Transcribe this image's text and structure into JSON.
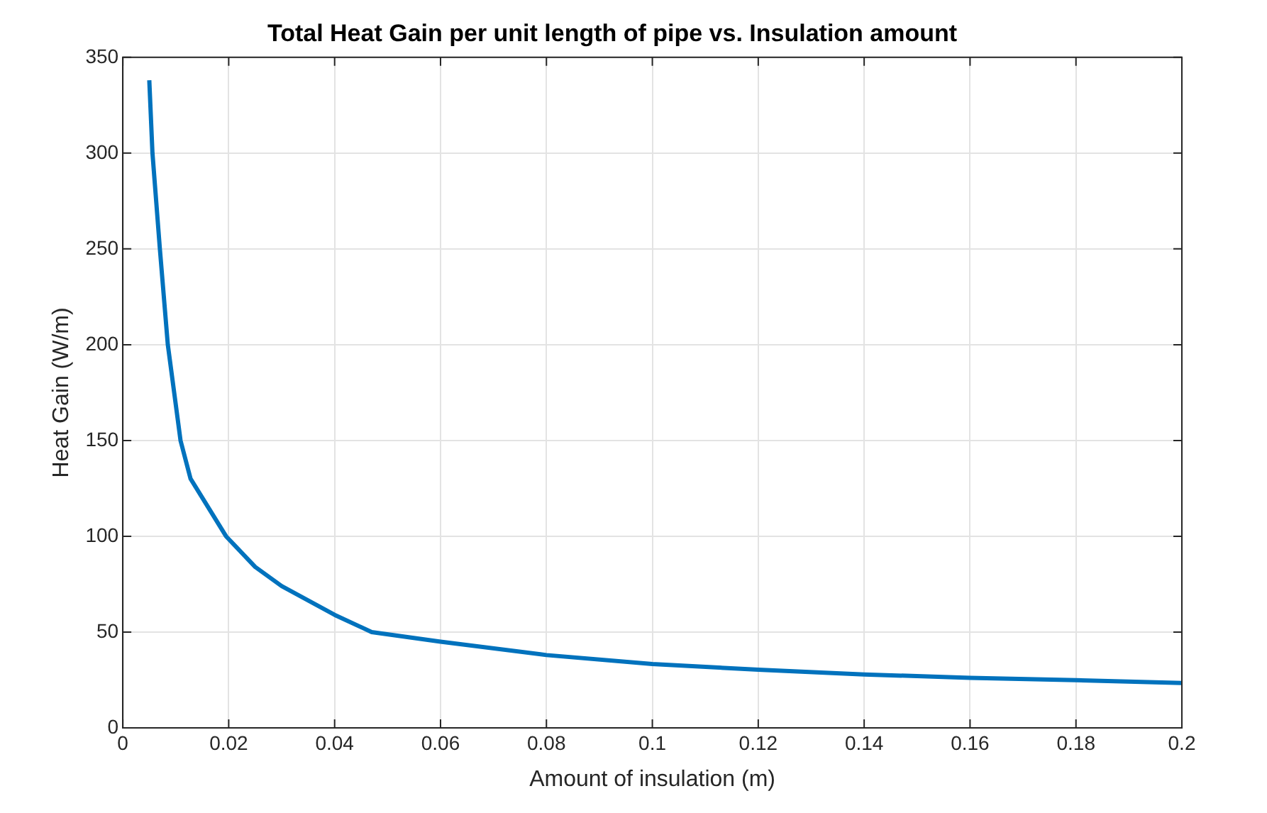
{
  "chart_data": {
    "type": "line",
    "title": "Total Heat Gain per unit length of pipe vs. Insulation amount",
    "xlabel": "Amount of insulation (m)",
    "ylabel": "Heat Gain (W/m)",
    "x": [
      0.005,
      0.0056,
      0.007,
      0.0085,
      0.0109,
      0.0128,
      0.0195,
      0.025,
      0.03,
      0.04,
      0.047,
      0.06,
      0.08,
      0.1,
      0.12,
      0.14,
      0.16,
      0.18,
      0.2
    ],
    "series": [
      {
        "color": "#0072bd",
        "values": [
          338,
          300,
          250,
          200,
          150,
          130,
          100,
          84,
          74,
          59,
          50,
          45,
          38,
          33.3,
          30.4,
          27.9,
          26.1,
          24.9,
          23.4
        ]
      }
    ],
    "xlim": [
      0,
      0.2
    ],
    "xticks": [
      0,
      0.02,
      0.04,
      0.06,
      0.08,
      0.1,
      0.12,
      0.14,
      0.16,
      0.18,
      0.2
    ],
    "ylim": [
      0,
      350
    ],
    "yticks": [
      0,
      50,
      100,
      150,
      200,
      250,
      300,
      350
    ],
    "grid": true,
    "legend": false,
    "marker": "none",
    "line_style": "solid"
  }
}
